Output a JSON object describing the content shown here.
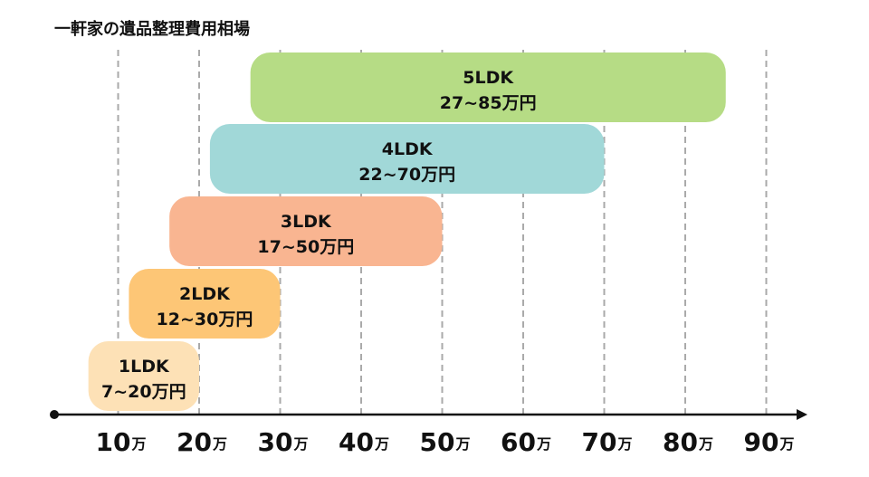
{
  "chart_data": {
    "type": "bar",
    "orientation": "horizontal-range",
    "title": "一軒家の遺品整理費用相場",
    "xlabel": "",
    "ylabel": "",
    "x_unit": "万",
    "xlim": [
      0,
      95
    ],
    "xticks": [
      10,
      20,
      30,
      40,
      50,
      60,
      70,
      80,
      90
    ],
    "grid": true,
    "categories": [
      "1LDK",
      "2LDK",
      "3LDK",
      "4LDK",
      "5LDK"
    ],
    "series": [
      {
        "name": "1LDK",
        "range": [
          7,
          20
        ],
        "label": "7~20万円",
        "color": "#fde1b6"
      },
      {
        "name": "2LDK",
        "range": [
          12,
          30
        ],
        "label": "12~30万円",
        "color": "#fdc676"
      },
      {
        "name": "3LDK",
        "range": [
          17,
          50
        ],
        "label": "17~50万円",
        "color": "#f9b591"
      },
      {
        "name": "4LDK",
        "range": [
          22,
          70
        ],
        "label": "22~70万円",
        "color": "#a1d8d8"
      },
      {
        "name": "5LDK",
        "range": [
          27,
          85
        ],
        "label": "27~85万円",
        "color": "#b6dc85"
      }
    ]
  }
}
